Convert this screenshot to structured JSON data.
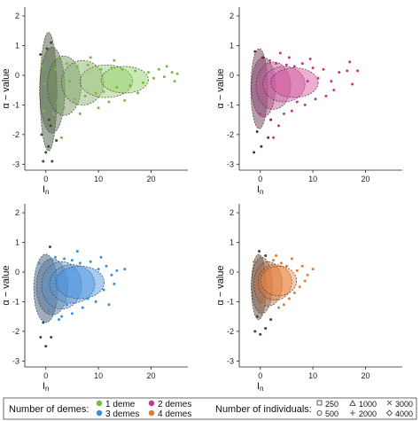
{
  "chart_data": [
    {
      "type": "scatter",
      "panel": "1 deme",
      "xlabel": "I",
      "xlabel_sub": "n",
      "ylabel": "α − value",
      "xlim": [
        -4,
        27
      ],
      "ylim": [
        -3.2,
        2.3
      ],
      "xticks": [
        0,
        10,
        20
      ],
      "yticks": [
        -3,
        -2,
        -1,
        0,
        1,
        2
      ],
      "color": "#76b84a",
      "dark_color": "#3a4a30",
      "ellipses": [
        {
          "cx": 0.5,
          "cy": -0.55,
          "rx": 1.6,
          "ry": 2.0,
          "fill": "#3a4a30"
        },
        {
          "cx": 1.2,
          "cy": -0.5,
          "rx": 2.4,
          "ry": 1.45,
          "fill": "#4d6340"
        },
        {
          "cx": 3.5,
          "cy": -0.35,
          "rx": 3.2,
          "ry": 1.0,
          "fill": "#6a8a55"
        },
        {
          "cx": 7.0,
          "cy": -0.25,
          "rx": 4.0,
          "ry": 0.75,
          "fill": "#86ad66"
        },
        {
          "cx": 11.5,
          "cy": -0.2,
          "rx": 5.0,
          "ry": 0.55,
          "fill": "#96c56f"
        },
        {
          "cx": 15.0,
          "cy": -0.15,
          "rx": 4.5,
          "ry": 0.45,
          "fill": "#8ccf58"
        }
      ],
      "points": [
        [
          0.0,
          -2.6
        ],
        [
          -0.5,
          -2.9
        ],
        [
          0.5,
          -2.4
        ],
        [
          1.2,
          -2.9
        ],
        [
          -0.8,
          -2.0
        ],
        [
          0.9,
          -1.7
        ],
        [
          2.0,
          -2.2
        ],
        [
          -0.4,
          -1.2
        ],
        [
          1.5,
          -1.3
        ],
        [
          -1.0,
          0.7
        ],
        [
          0.2,
          0.9
        ],
        [
          1.0,
          1.1
        ],
        [
          -0.7,
          0.3
        ],
        [
          2.5,
          0.6
        ],
        [
          3.5,
          -1.1
        ],
        [
          4.0,
          0.4
        ],
        [
          5.5,
          -0.8
        ],
        [
          6.0,
          0.3
        ],
        [
          7.5,
          -0.7
        ],
        [
          8.0,
          0.35
        ],
        [
          9.5,
          -0.6
        ],
        [
          10.5,
          0.2
        ],
        [
          11.0,
          -0.55
        ],
        [
          12.5,
          0.25
        ],
        [
          13.5,
          -0.4
        ],
        [
          14.5,
          0.2
        ],
        [
          16.0,
          -0.35
        ],
        [
          17.0,
          0.15
        ],
        [
          18.5,
          -0.25
        ],
        [
          19.5,
          0.1
        ],
        [
          20.5,
          -0.1
        ],
        [
          21.5,
          0.2
        ],
        [
          22.5,
          -0.05
        ],
        [
          24.0,
          0.1
        ],
        [
          25.0,
          0.05
        ],
        [
          15.0,
          -0.85
        ],
        [
          12.0,
          -0.9
        ],
        [
          10.0,
          -1.1
        ],
        [
          6.5,
          -1.3
        ],
        [
          8.5,
          0.6
        ],
        [
          23.0,
          0.3
        ],
        [
          24.5,
          -0.2
        ],
        [
          3.0,
          -2.1
        ],
        [
          2.2,
          -0.9
        ],
        [
          0.6,
          -1.5
        ],
        [
          1.8,
          0.2
        ],
        [
          -0.2,
          -0.3
        ],
        [
          4.5,
          -0.2
        ],
        [
          13.0,
          0.5
        ],
        [
          17.5,
          -0.6
        ]
      ]
    },
    {
      "type": "scatter",
      "panel": "2 demes",
      "xlabel": "I",
      "xlabel_sub": "n",
      "ylabel": "α − value",
      "xlim": [
        -4,
        27
      ],
      "ylim": [
        -3.2,
        2.3
      ],
      "xticks": [
        0,
        10,
        20
      ],
      "yticks": [
        -3,
        -2,
        -1,
        0,
        1,
        2
      ],
      "color": "#d0318e",
      "dark_color": "#5a2a44",
      "ellipses": [
        {
          "cx": -0.2,
          "cy": -0.45,
          "rx": 1.6,
          "ry": 1.35,
          "fill": "#5a2a44"
        },
        {
          "cx": 0.6,
          "cy": -0.4,
          "rx": 2.3,
          "ry": 1.0,
          "fill": "#8a3d68"
        },
        {
          "cx": 2.5,
          "cy": -0.35,
          "rx": 3.3,
          "ry": 0.8,
          "fill": "#b4558d"
        },
        {
          "cx": 4.5,
          "cy": -0.3,
          "rx": 4.0,
          "ry": 0.6,
          "fill": "#c7609f"
        },
        {
          "cx": 6.5,
          "cy": -0.25,
          "rx": 4.5,
          "ry": 0.5,
          "fill": "#d44d9c"
        }
      ],
      "points": [
        [
          -1.2,
          -2.6
        ],
        [
          0.2,
          -2.4
        ],
        [
          1.5,
          -2.1
        ],
        [
          -0.6,
          -1.9
        ],
        [
          2.5,
          -2.1
        ],
        [
          3.5,
          -1.7
        ],
        [
          -1.0,
          0.8
        ],
        [
          0.5,
          0.6
        ],
        [
          1.8,
          0.5
        ],
        [
          3.0,
          0.4
        ],
        [
          5.0,
          0.35
        ],
        [
          6.5,
          0.3
        ],
        [
          8.0,
          0.4
        ],
        [
          9.0,
          -0.2
        ],
        [
          10.0,
          0.25
        ],
        [
          11.0,
          -0.1
        ],
        [
          12.0,
          0.2
        ],
        [
          13.5,
          -0.2
        ],
        [
          15.0,
          0.1
        ],
        [
          16.5,
          0.15
        ],
        [
          17.5,
          -0.3
        ],
        [
          18.5,
          0.15
        ],
        [
          10.5,
          -0.8
        ],
        [
          8.5,
          -1.0
        ],
        [
          6.0,
          -1.2
        ],
        [
          4.5,
          -1.3
        ],
        [
          7.0,
          -0.9
        ],
        [
          2.0,
          -1.5
        ],
        [
          5.5,
          0.6
        ],
        [
          14.0,
          -0.5
        ],
        [
          17.0,
          0.45
        ],
        [
          12.5,
          -0.7
        ],
        [
          0.0,
          -1.3
        ],
        [
          3.8,
          0.75
        ],
        [
          9.5,
          0.55
        ]
      ]
    },
    {
      "type": "scatter",
      "panel": "3 demes",
      "xlabel": "I",
      "xlabel_sub": "n",
      "ylabel": "α − value",
      "xlim": [
        -4,
        27
      ],
      "ylim": [
        -3.2,
        2.3
      ],
      "xticks": [
        0,
        10,
        20
      ],
      "yticks": [
        -3,
        -2,
        -1,
        0,
        1,
        2
      ],
      "color": "#3b8fd9",
      "dark_color": "#2f4a66",
      "ellipses": [
        {
          "cx": 0.0,
          "cy": -0.55,
          "rx": 2.3,
          "ry": 1.15,
          "fill": "#2f4a66"
        },
        {
          "cx": 1.2,
          "cy": -0.5,
          "rx": 3.0,
          "ry": 0.95,
          "fill": "#4a6e93"
        },
        {
          "cx": 3.0,
          "cy": -0.45,
          "rx": 3.8,
          "ry": 0.8,
          "fill": "#5f8dc0"
        },
        {
          "cx": 5.0,
          "cy": -0.4,
          "rx": 4.3,
          "ry": 0.65,
          "fill": "#4f94d6"
        },
        {
          "cx": 6.5,
          "cy": -0.35,
          "rx": 4.6,
          "ry": 0.55,
          "fill": "#3f8fe0"
        }
      ],
      "points": [
        [
          -1.0,
          -2.2
        ],
        [
          0.0,
          -2.5
        ],
        [
          1.0,
          -2.2
        ],
        [
          -0.5,
          -1.7
        ],
        [
          2.5,
          -1.6
        ],
        [
          0.8,
          0.85
        ],
        [
          -1.3,
          0.3
        ],
        [
          1.8,
          0.5
        ],
        [
          3.5,
          0.45
        ],
        [
          5.0,
          0.4
        ],
        [
          6.5,
          0.3
        ],
        [
          8.5,
          0.35
        ],
        [
          10.0,
          0.1
        ],
        [
          11.5,
          0.2
        ],
        [
          12.5,
          -0.1
        ],
        [
          13.5,
          0.05
        ],
        [
          15.0,
          0.1
        ],
        [
          9.5,
          -1.0
        ],
        [
          7.0,
          -1.2
        ],
        [
          5.0,
          -1.4
        ],
        [
          3.0,
          -1.5
        ],
        [
          8.0,
          -0.9
        ],
        [
          11.0,
          -0.6
        ],
        [
          12.0,
          -1.1
        ],
        [
          0.5,
          -1.3
        ],
        [
          4.0,
          -1.1
        ],
        [
          6.0,
          0.7
        ],
        [
          10.5,
          0.5
        ],
        [
          2.0,
          -0.2
        ],
        [
          13.0,
          -0.4
        ]
      ]
    },
    {
      "type": "scatter",
      "panel": "4 demes",
      "xlabel": "I",
      "xlabel_sub": "n",
      "ylabel": "α − value",
      "xlim": [
        -4,
        27
      ],
      "ylim": [
        -3.2,
        2.3
      ],
      "xticks": [
        0,
        10,
        20
      ],
      "yticks": [
        -3,
        -2,
        -1,
        0,
        1,
        2
      ],
      "color": "#e07a3a",
      "dark_color": "#4e3a2c",
      "ellipses": [
        {
          "cx": -0.3,
          "cy": -0.5,
          "rx": 1.4,
          "ry": 1.1,
          "fill": "#4e3a2c"
        },
        {
          "cx": 0.3,
          "cy": -0.45,
          "rx": 2.0,
          "ry": 0.95,
          "fill": "#7a5a44"
        },
        {
          "cx": 1.5,
          "cy": -0.4,
          "rx": 2.7,
          "ry": 0.75,
          "fill": "#b86a3d"
        },
        {
          "cx": 2.8,
          "cy": -0.35,
          "rx": 3.2,
          "ry": 0.6,
          "fill": "#e2793a"
        },
        {
          "cx": 3.5,
          "cy": -0.3,
          "rx": 3.4,
          "ry": 0.5,
          "fill": "#ef8a45"
        }
      ],
      "points": [
        [
          -1.0,
          -2.0
        ],
        [
          0.0,
          -2.1
        ],
        [
          1.0,
          -1.9
        ],
        [
          -0.6,
          -1.5
        ],
        [
          2.0,
          -1.6
        ],
        [
          -0.2,
          0.7
        ],
        [
          -1.2,
          0.35
        ],
        [
          1.0,
          0.55
        ],
        [
          2.5,
          0.4
        ],
        [
          4.0,
          0.3
        ],
        [
          5.0,
          0.2
        ],
        [
          6.0,
          0.45
        ],
        [
          7.0,
          0.05
        ],
        [
          8.0,
          0.2
        ],
        [
          9.0,
          -0.1
        ],
        [
          10.0,
          0.1
        ],
        [
          5.5,
          -0.9
        ],
        [
          4.5,
          -1.1
        ],
        [
          3.5,
          -1.2
        ],
        [
          6.5,
          -0.7
        ],
        [
          7.5,
          -0.5
        ],
        [
          0.5,
          -1.1
        ],
        [
          3.0,
          0.55
        ],
        [
          8.5,
          -0.3
        ]
      ]
    }
  ],
  "legend": {
    "demes_title": "Number of demes:",
    "demes": [
      {
        "label": "1 deme",
        "color": "#76b84a"
      },
      {
        "label": "2 demes",
        "color": "#d0318e"
      },
      {
        "label": "3 demes",
        "color": "#3b8fd9"
      },
      {
        "label": "4 demes",
        "color": "#e07a3a"
      }
    ],
    "individuals_title": "Number of individuals:",
    "individuals": [
      {
        "label": "250",
        "shape": "square"
      },
      {
        "label": "1000",
        "shape": "triangle"
      },
      {
        "label": "3000",
        "shape": "cross"
      },
      {
        "label": "500",
        "shape": "circle"
      },
      {
        "label": "2000",
        "shape": "plus"
      },
      {
        "label": "4000",
        "shape": "diamond"
      }
    ]
  }
}
